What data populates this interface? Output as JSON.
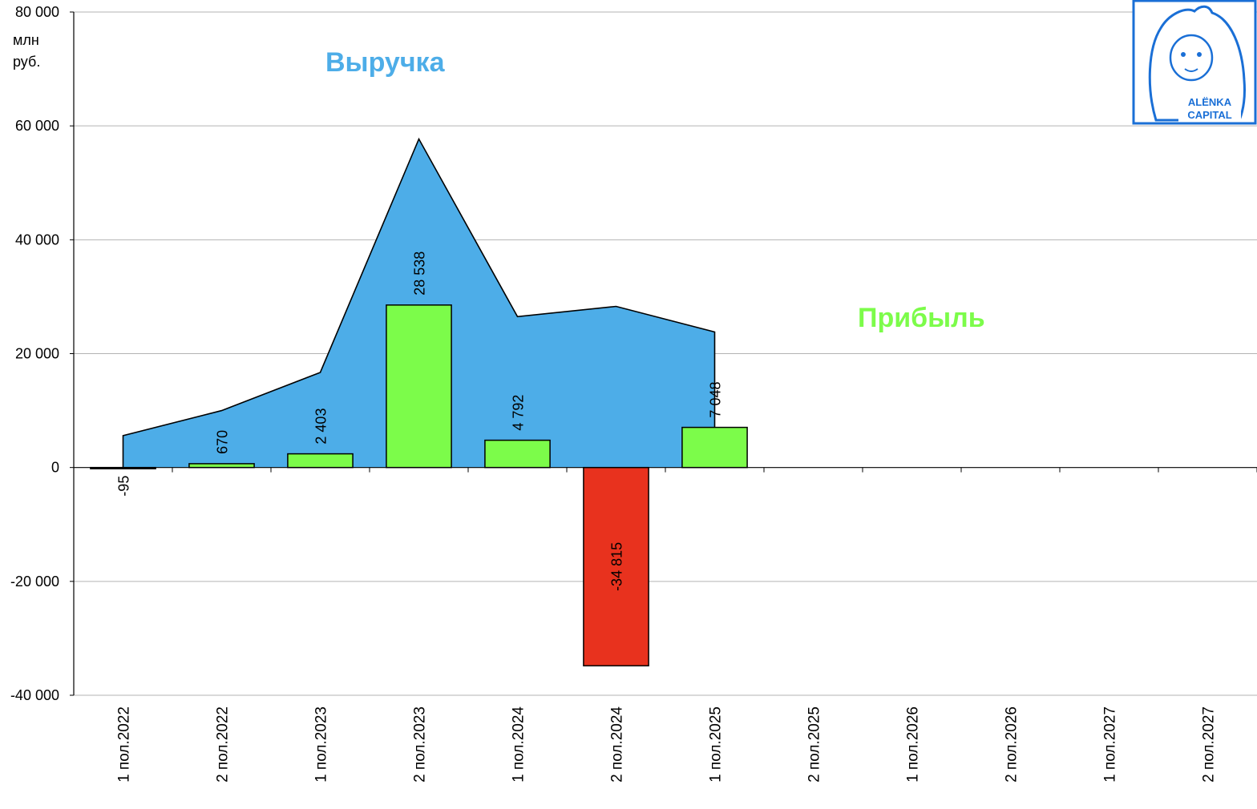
{
  "chart_data": {
    "type": "bar",
    "title": "",
    "unit_line1": "млн",
    "unit_line2": "руб.",
    "ylim": [
      -40000,
      80000
    ],
    "y_ticks": [
      80000,
      60000,
      40000,
      20000,
      0,
      -20000,
      -40000
    ],
    "y_tick_labels": [
      "80 000",
      "60 000",
      "40 000",
      "20 000",
      "0",
      "-20 000",
      "-40 000"
    ],
    "grid": true,
    "categories": [
      "1 пол.2022",
      "2 пол.2022",
      "1 пол.2023",
      "2 пол.2023",
      "1 пол.2024",
      "2 пол.2024",
      "1 пол.2025",
      "2 пол.2025",
      "1 пол.2026",
      "2 пол.2026",
      "1 пол.2027",
      "2 пол.2027"
    ],
    "series": [
      {
        "name": "Выручка",
        "kind": "area",
        "color": "#4dade8",
        "values": [
          5600,
          10000,
          16700,
          57700,
          26500,
          28300,
          23800,
          null,
          null,
          null,
          null,
          null
        ]
      },
      {
        "name": "Прибыль",
        "kind": "bar",
        "color": "#7cfc4a",
        "negative_color": "#e8321e",
        "values": [
          -95,
          670,
          2403,
          28538,
          4792,
          -34815,
          7048,
          null,
          null,
          null,
          null,
          null
        ],
        "labels": [
          "-95",
          "670",
          "2 403",
          "28 538",
          "4 792",
          "-34 815",
          "7 048",
          "",
          "",
          "",
          "",
          ""
        ]
      }
    ],
    "legend": {
      "revenue_label": "Выручка",
      "revenue_color": "#4dade8",
      "profit_label": "Прибыль",
      "profit_color": "#7cfc4a"
    }
  },
  "logo": {
    "line1": "ALЁNKA",
    "line2": "CAPITAL",
    "color": "#1a6fd6"
  }
}
